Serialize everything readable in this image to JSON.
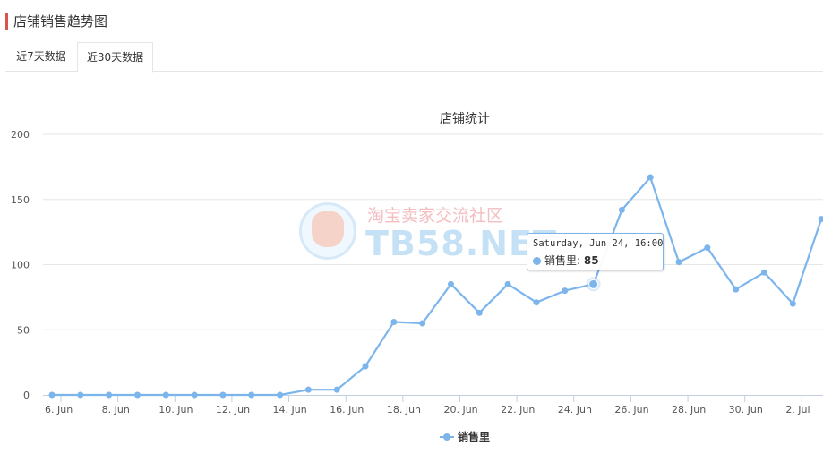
{
  "header": {
    "title": "店铺销售趋势图"
  },
  "tabs": [
    {
      "label": "近7天数据",
      "active": false
    },
    {
      "label": "近30天数据",
      "active": true
    }
  ],
  "chart_data": {
    "type": "line",
    "title": "店铺统计",
    "xlabel": "",
    "ylabel": "",
    "ylim": [
      0,
      200
    ],
    "yticks": [
      0,
      50,
      100,
      150,
      200
    ],
    "grid": true,
    "legend_position": "bottom-center",
    "colors": {
      "series": "#7cb5ec",
      "grid": "#e6e6e6",
      "axis": "#c0d0e0"
    },
    "x": [
      "2023-06-06",
      "2023-06-07",
      "2023-06-08",
      "2023-06-09",
      "2023-06-10",
      "2023-06-11",
      "2023-06-12",
      "2023-06-13",
      "2023-06-14",
      "2023-06-15",
      "2023-06-16",
      "2023-06-17",
      "2023-06-18",
      "2023-06-19",
      "2023-06-20",
      "2023-06-21",
      "2023-06-22",
      "2023-06-23",
      "2023-06-24",
      "2023-06-25",
      "2023-06-26",
      "2023-06-27",
      "2023-06-28",
      "2023-06-29",
      "2023-06-30",
      "2023-07-01",
      "2023-07-02",
      "2023-07-03"
    ],
    "xtick_labels": [
      "6. Jun",
      "8. Jun",
      "10. Jun",
      "12. Jun",
      "14. Jun",
      "16. Jun",
      "18. Jun",
      "20. Jun",
      "22. Jun",
      "24. Jun",
      "26. Jun",
      "28. Jun",
      "30. Jun",
      "2. Jul"
    ],
    "series": [
      {
        "name": "销售里",
        "values": [
          0,
          0,
          0,
          0,
          0,
          0,
          0,
          0,
          0,
          4,
          4,
          22,
          56,
          55,
          85,
          63,
          85,
          71,
          80,
          85,
          142,
          167,
          102,
          113,
          81,
          94,
          70,
          135
        ]
      }
    ],
    "tooltip": {
      "header": "Saturday, Jun 24, 16:00",
      "series_label": "销售里: ",
      "value": "85",
      "point_index": 19
    }
  },
  "watermark": {
    "text_cn": "淘宝卖家交流社区",
    "text_en": "TB58.NET"
  }
}
